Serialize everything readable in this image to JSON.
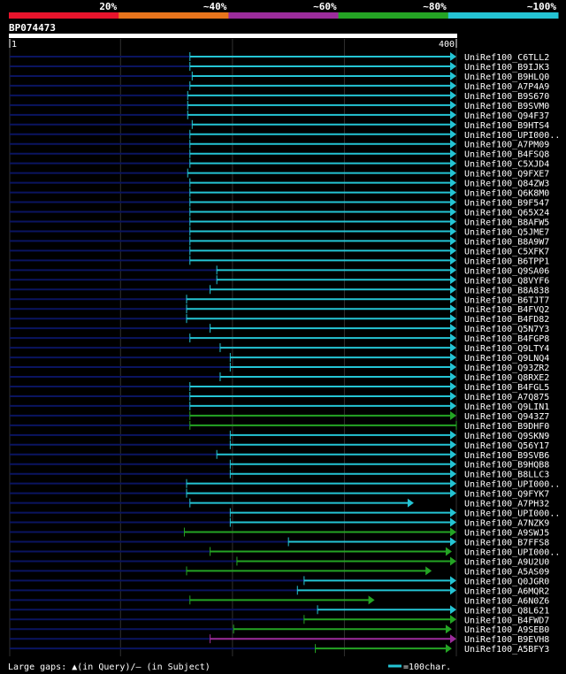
{
  "chart_data": {
    "type": "alignment-overview",
    "query_id": "BP074473",
    "query_start": 1,
    "query_end": 400,
    "colors": {
      "bg": "#000000",
      "identity_20": "#e8142c",
      "identity_40": "#e8741c",
      "identity_60": "#9c2c9c",
      "identity_80": "#24a424",
      "identity_100": "#24c4d4",
      "unaligned": "#0a1460",
      "grid": "#303030",
      "query_bar": "#ffffff",
      "text": "#ffffff"
    },
    "identity_legend": [
      {
        "label": "20%",
        "color": "#e8142c"
      },
      {
        "label": "~40%",
        "color": "#e8741c"
      },
      {
        "label": "~60%",
        "color": "#9c2c9c"
      },
      {
        "label": "~80%",
        "color": "#24a424"
      },
      {
        "label": "~100%",
        "color": "#24c4d4"
      }
    ],
    "hits": [
      {
        "name": "UniRef100_C6TLL2",
        "start": 162,
        "end": 400,
        "color": "#24c4d4",
        "arrow": true
      },
      {
        "name": "UniRef100_B9IJK3",
        "start": 162,
        "end": 400,
        "color": "#24c4d4",
        "arrow": true
      },
      {
        "name": "UniRef100_B9HLQ0",
        "start": 164,
        "end": 400,
        "color": "#24c4d4",
        "arrow": true
      },
      {
        "name": "UniRef100_A7P4A9",
        "start": 162,
        "end": 400,
        "color": "#24c4d4",
        "arrow": true
      },
      {
        "name": "UniRef100_B9S670",
        "start": 160,
        "end": 400,
        "color": "#24c4d4",
        "arrow": true
      },
      {
        "name": "UniRef100_B9SVM0",
        "start": 160,
        "end": 400,
        "color": "#24c4d4",
        "arrow": true
      },
      {
        "name": "UniRef100_Q94F37",
        "start": 160,
        "end": 400,
        "color": "#24c4d4",
        "arrow": true
      },
      {
        "name": "UniRef100_B9HTS4",
        "start": 164,
        "end": 400,
        "color": "#24c4d4",
        "arrow": true
      },
      {
        "name": "UniRef100_UPI000..",
        "start": 162,
        "end": 400,
        "color": "#24c4d4",
        "arrow": true
      },
      {
        "name": "UniRef100_A7PM09",
        "start": 162,
        "end": 400,
        "color": "#24c4d4",
        "arrow": true
      },
      {
        "name": "UniRef100_B4FSQ8",
        "start": 162,
        "end": 400,
        "color": "#24c4d4",
        "arrow": true
      },
      {
        "name": "UniRef100_C5XJD4",
        "start": 162,
        "end": 400,
        "color": "#24c4d4",
        "arrow": true
      },
      {
        "name": "UniRef100_Q9FXE7",
        "start": 160,
        "end": 400,
        "color": "#24c4d4",
        "arrow": true
      },
      {
        "name": "UniRef100_Q84ZW3",
        "start": 162,
        "end": 400,
        "color": "#24c4d4",
        "arrow": true
      },
      {
        "name": "UniRef100_Q6K8M0",
        "start": 162,
        "end": 400,
        "color": "#24c4d4",
        "arrow": true
      },
      {
        "name": "UniRef100_B9F547",
        "start": 162,
        "end": 400,
        "color": "#24c4d4",
        "arrow": true
      },
      {
        "name": "UniRef100_Q65X24",
        "start": 162,
        "end": 400,
        "color": "#24c4d4",
        "arrow": true
      },
      {
        "name": "UniRef100_B8AFW5",
        "start": 162,
        "end": 400,
        "color": "#24c4d4",
        "arrow": true
      },
      {
        "name": "UniRef100_Q5JME7",
        "start": 162,
        "end": 400,
        "color": "#24c4d4",
        "arrow": true
      },
      {
        "name": "UniRef100_B8A9W7",
        "start": 162,
        "end": 400,
        "color": "#24c4d4",
        "arrow": true
      },
      {
        "name": "UniRef100_C5XFK7",
        "start": 162,
        "end": 400,
        "color": "#24c4d4",
        "arrow": true
      },
      {
        "name": "UniRef100_B6TPP1",
        "start": 162,
        "end": 400,
        "color": "#24c4d4",
        "arrow": true
      },
      {
        "name": "UniRef100_Q9SA06",
        "start": 186,
        "end": 400,
        "color": "#24c4d4",
        "arrow": true
      },
      {
        "name": "UniRef100_Q8VYF6",
        "start": 186,
        "end": 400,
        "color": "#24c4d4",
        "arrow": true
      },
      {
        "name": "UniRef100_B8A838",
        "start": 180,
        "end": 400,
        "color": "#24c4d4",
        "arrow": true
      },
      {
        "name": "UniRef100_B6TJT7",
        "start": 159,
        "end": 400,
        "color": "#24c4d4",
        "arrow": true
      },
      {
        "name": "UniRef100_B4FVQ2",
        "start": 159,
        "end": 400,
        "color": "#24c4d4",
        "arrow": true
      },
      {
        "name": "UniRef100_B4FD82",
        "start": 159,
        "end": 400,
        "color": "#24c4d4",
        "arrow": true
      },
      {
        "name": "UniRef100_Q5N7Y3",
        "start": 180,
        "end": 400,
        "color": "#24c4d4",
        "arrow": true
      },
      {
        "name": "UniRef100_B4FGP8",
        "start": 162,
        "end": 400,
        "color": "#24c4d4",
        "arrow": true
      },
      {
        "name": "UniRef100_Q9LTY4",
        "start": 189,
        "end": 400,
        "color": "#24c4d4",
        "arrow": true
      },
      {
        "name": "UniRef100_Q9LNQ4",
        "start": 198,
        "end": 400,
        "color": "#24c4d4",
        "arrow": true
      },
      {
        "name": "UniRef100_Q93ZR2",
        "start": 198,
        "end": 400,
        "color": "#24c4d4",
        "arrow": true
      },
      {
        "name": "UniRef100_Q8RXE2",
        "start": 189,
        "end": 400,
        "color": "#24c4d4",
        "arrow": true
      },
      {
        "name": "UniRef100_B4FGL5",
        "start": 162,
        "end": 400,
        "color": "#24c4d4",
        "arrow": true
      },
      {
        "name": "UniRef100_A7Q875",
        "start": 162,
        "end": 400,
        "color": "#24c4d4",
        "arrow": true
      },
      {
        "name": "UniRef100_Q9LIN1",
        "start": 162,
        "end": 400,
        "color": "#24c4d4",
        "arrow": true
      },
      {
        "name": "UniRef100_Q943Z7",
        "start": 162,
        "end": 400,
        "color": "#24a424",
        "arrow": true
      },
      {
        "name": "UniRef100_B9DHF0",
        "start": 162,
        "end": 400,
        "color": "#24a424",
        "arrow": false
      },
      {
        "name": "UniRef100_Q9SKN9",
        "start": 198,
        "end": 400,
        "color": "#24c4d4",
        "arrow": true
      },
      {
        "name": "UniRef100_Q56Y17",
        "start": 198,
        "end": 400,
        "color": "#24c4d4",
        "arrow": true
      },
      {
        "name": "UniRef100_B9SVB6",
        "start": 186,
        "end": 400,
        "color": "#24c4d4",
        "arrow": true
      },
      {
        "name": "UniRef100_B9HQB8",
        "start": 198,
        "end": 400,
        "color": "#24c4d4",
        "arrow": true
      },
      {
        "name": "UniRef100_B8LLC3",
        "start": 198,
        "end": 400,
        "color": "#24c4d4",
        "arrow": true
      },
      {
        "name": "UniRef100_UPI000..",
        "start": 159,
        "end": 400,
        "color": "#24c4d4",
        "arrow": true
      },
      {
        "name": "UniRef100_Q9FYK7",
        "start": 159,
        "end": 400,
        "color": "#24c4d4",
        "arrow": true
      },
      {
        "name": "UniRef100_A7PH32",
        "start": 162,
        "end": 362,
        "color": "#24c4d4",
        "arrow": true
      },
      {
        "name": "UniRef100_UPI000..",
        "start": 198,
        "end": 400,
        "color": "#24c4d4",
        "arrow": true
      },
      {
        "name": "UniRef100_A7NZK9",
        "start": 198,
        "end": 400,
        "color": "#24c4d4",
        "arrow": true
      },
      {
        "name": "UniRef100_A9SWJ5",
        "start": 157,
        "end": 400,
        "color": "#24a424",
        "arrow": true
      },
      {
        "name": "UniRef100_B7FFS8",
        "start": 250,
        "end": 400,
        "color": "#24c4d4",
        "arrow": true
      },
      {
        "name": "UniRef100_UPI000..",
        "start": 180,
        "end": 396,
        "color": "#24a424",
        "arrow": true
      },
      {
        "name": "UniRef100_A9U2U0",
        "start": 204,
        "end": 400,
        "color": "#24a424",
        "arrow": true
      },
      {
        "name": "UniRef100_A5AS09",
        "start": 159,
        "end": 378,
        "color": "#24a424",
        "arrow": true
      },
      {
        "name": "UniRef100_Q0JGR0",
        "start": 264,
        "end": 400,
        "color": "#24c4d4",
        "arrow": true
      },
      {
        "name": "UniRef100_A6MQR2",
        "start": 258,
        "end": 400,
        "color": "#24c4d4",
        "arrow": true
      },
      {
        "name": "UniRef100_A6N0Z6",
        "start": 162,
        "end": 327,
        "color": "#24a424",
        "arrow": true
      },
      {
        "name": "UniRef100_Q8L621",
        "start": 276,
        "end": 400,
        "color": "#24c4d4",
        "arrow": true
      },
      {
        "name": "UniRef100_B4FWD7",
        "start": 264,
        "end": 400,
        "color": "#24a424",
        "arrow": true
      },
      {
        "name": "UniRef100_A9SEB0",
        "start": 201,
        "end": 396,
        "color": "#24a424",
        "arrow": true
      },
      {
        "name": "UniRef100_B9EVH8",
        "start": 180,
        "end": 400,
        "color": "#9c2c9c",
        "arrow": true
      },
      {
        "name": "UniRef100_A5BFY3",
        "start": 274,
        "end": 396,
        "color": "#24a424",
        "arrow": true
      }
    ],
    "footer": {
      "gaps_text": "Large gaps: ▲(in Query)/— (in Subject)",
      "scale_text": "=100char."
    }
  }
}
